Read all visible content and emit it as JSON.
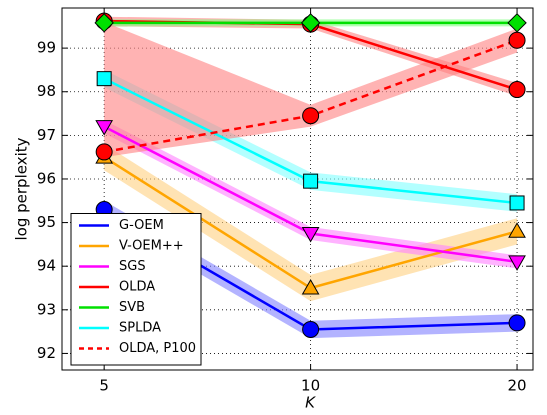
{
  "chart_data": {
    "type": "line",
    "x": [
      5,
      10,
      20
    ],
    "xlabel": "K",
    "ylabel": "log perplexity",
    "xlim": [
      4.34,
      21.1
    ],
    "ylim": [
      91.62,
      99.92
    ],
    "xscale": "log",
    "xticks": [
      5,
      10,
      20
    ],
    "yticks": [
      92,
      93,
      94,
      95,
      96,
      97,
      98,
      99
    ],
    "grid": true,
    "legend_position": "lower left",
    "series": [
      {
        "name": "G-OEM",
        "color": "#0000ff",
        "band_color": "#8080ff",
        "marker": "circle",
        "linestyle": "solid",
        "values": [
          95.3,
          92.55,
          92.7
        ],
        "band_lower": [
          95.1,
          92.35,
          92.5
        ],
        "band_upper": [
          95.5,
          92.75,
          92.9
        ]
      },
      {
        "name": "V-OEM++",
        "color": "#ffa500",
        "band_color": "#ffd080",
        "marker": "triangle-up",
        "linestyle": "solid",
        "values": [
          96.5,
          93.5,
          94.8
        ],
        "band_lower": [
          96.2,
          93.2,
          94.5
        ],
        "band_upper": [
          96.8,
          93.8,
          95.1
        ]
      },
      {
        "name": "SGS",
        "color": "#ff00ff",
        "band_color": "#ff80ff",
        "marker": "triangle-down",
        "linestyle": "solid",
        "values": [
          97.2,
          94.75,
          94.1
        ],
        "band_lower": [
          97.05,
          94.6,
          93.95
        ],
        "band_upper": [
          97.35,
          94.9,
          94.25
        ]
      },
      {
        "name": "OLDA",
        "color": "#ff0000",
        "band_color": "#ff8080",
        "marker": "circle",
        "linestyle": "solid",
        "values": [
          99.62,
          99.55,
          98.05
        ],
        "band_lower": [
          99.5,
          99.45,
          97.9
        ],
        "band_upper": [
          99.72,
          99.65,
          98.2
        ]
      },
      {
        "name": "SVB",
        "color": "#00e000",
        "band_color": "#80ff80",
        "marker": "diamond",
        "linestyle": "solid",
        "values": [
          99.58,
          99.58,
          99.58
        ],
        "band_lower": [
          99.5,
          99.5,
          99.5
        ],
        "band_upper": [
          99.66,
          99.66,
          99.66
        ]
      },
      {
        "name": "SPLDA",
        "color": "#00ffff",
        "band_color": "#80ffff",
        "marker": "square",
        "linestyle": "solid",
        "values": [
          98.3,
          95.95,
          95.45
        ],
        "band_lower": [
          98.1,
          95.75,
          95.25
        ],
        "band_upper": [
          98.5,
          96.15,
          95.65
        ]
      },
      {
        "name": "OLDA, P100",
        "color": "#ff0000",
        "band_color": "#ff8080",
        "marker": "circle",
        "linestyle": "dashed",
        "values": [
          96.62,
          97.45,
          99.18
        ],
        "band_lower": [
          96.5,
          97.2,
          98.9
        ],
        "band_upper": [
          99.6,
          97.7,
          99.45
        ]
      }
    ]
  }
}
